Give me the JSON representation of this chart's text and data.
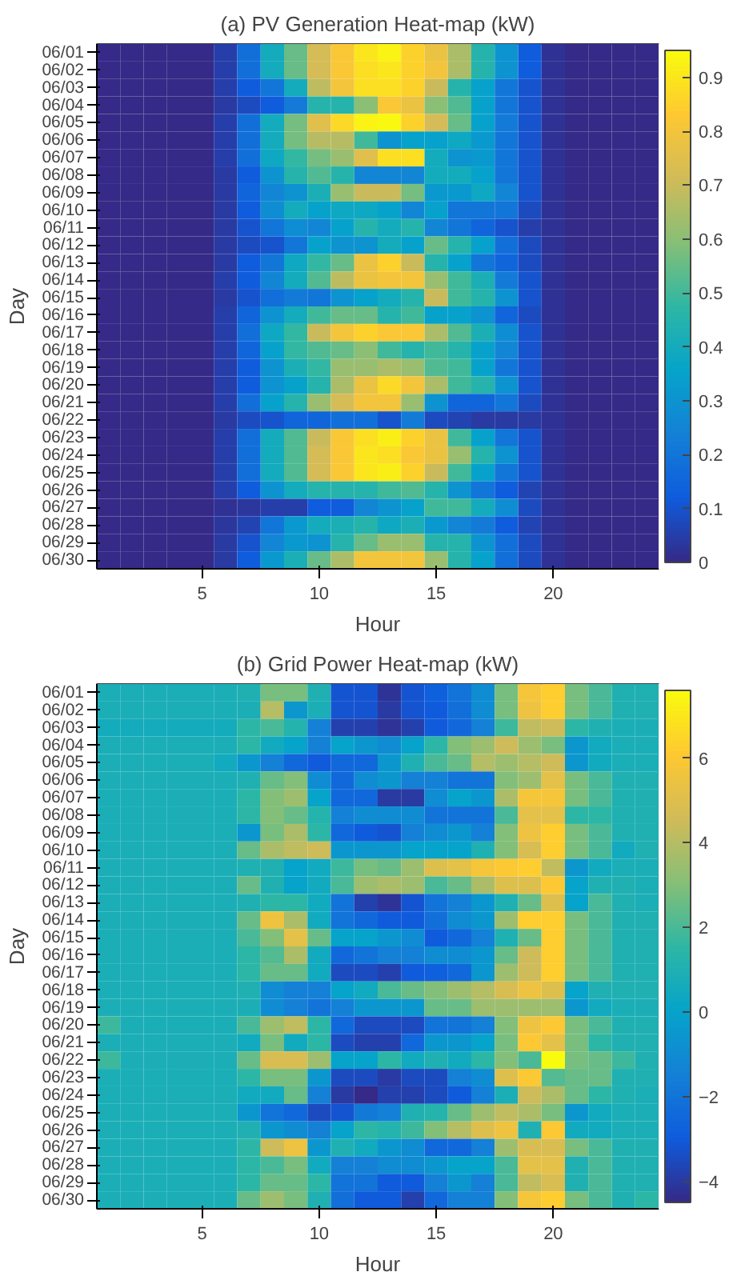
{
  "chart_data": [
    {
      "type": "heatmap",
      "title": "(a) PV Generation Heat-map (kW)",
      "xlabel": "Hour",
      "ylabel": "Day",
      "x": [
        1,
        2,
        3,
        4,
        5,
        6,
        7,
        8,
        9,
        10,
        11,
        12,
        13,
        14,
        15,
        16,
        17,
        18,
        19,
        20,
        21,
        22,
        23,
        24
      ],
      "xlim": [
        0.5,
        24.5
      ],
      "xticks": [
        5,
        10,
        15,
        20
      ],
      "y_categories": [
        "06/01",
        "06/02",
        "06/03",
        "06/04",
        "06/05",
        "06/06",
        "06/07",
        "06/08",
        "06/09",
        "06/10",
        "06/11",
        "06/12",
        "06/13",
        "06/14",
        "06/15",
        "06/16",
        "06/17",
        "06/18",
        "06/19",
        "06/20",
        "06/21",
        "06/22",
        "06/23",
        "06/24",
        "06/25",
        "06/26",
        "06/27",
        "06/28",
        "06/29",
        "06/30"
      ],
      "clim": [
        0,
        0.95
      ],
      "cticks": [
        0,
        0.1,
        0.2,
        0.3,
        0.4,
        0.5,
        0.6,
        0.7,
        0.8,
        0.9
      ],
      "cells": [
        [
          0,
          0,
          0,
          0,
          0,
          0.05,
          0.18,
          0.4,
          0.55,
          0.72,
          0.82,
          0.9,
          0.93,
          0.85,
          0.78,
          0.65,
          0.45,
          0.3,
          0.12,
          0.02,
          0,
          0,
          0,
          0
        ],
        [
          0,
          0,
          0,
          0,
          0,
          0.05,
          0.18,
          0.4,
          0.55,
          0.72,
          0.82,
          0.88,
          0.9,
          0.85,
          0.8,
          0.65,
          0.45,
          0.3,
          0.12,
          0.02,
          0,
          0,
          0,
          0
        ],
        [
          0,
          0,
          0,
          0,
          0,
          0.05,
          0.12,
          0.2,
          0.4,
          0.68,
          0.8,
          0.88,
          0.88,
          0.85,
          0.7,
          0.45,
          0.35,
          0.2,
          0.1,
          0.02,
          0,
          0,
          0,
          0
        ],
        [
          0,
          0,
          0,
          0,
          0,
          0.04,
          0.08,
          0.12,
          0.22,
          0.45,
          0.45,
          0.6,
          0.82,
          0.78,
          0.6,
          0.52,
          0.35,
          0.2,
          0.1,
          0.02,
          0,
          0,
          0,
          0
        ],
        [
          0,
          0,
          0,
          0,
          0,
          0.05,
          0.18,
          0.4,
          0.57,
          0.75,
          0.87,
          0.93,
          0.94,
          0.85,
          0.72,
          0.55,
          0.35,
          0.22,
          0.1,
          0.02,
          0,
          0,
          0,
          0
        ],
        [
          0,
          0,
          0,
          0,
          0,
          0.05,
          0.18,
          0.4,
          0.57,
          0.67,
          0.67,
          0.5,
          0.3,
          0.35,
          0.35,
          0.38,
          0.32,
          0.2,
          0.1,
          0.02,
          0,
          0,
          0,
          0
        ],
        [
          0,
          0,
          0,
          0,
          0,
          0.05,
          0.18,
          0.38,
          0.48,
          0.57,
          0.62,
          0.75,
          0.88,
          0.88,
          0.4,
          0.3,
          0.32,
          0.2,
          0.1,
          0.02,
          0,
          0,
          0,
          0
        ],
        [
          0,
          0,
          0,
          0,
          0,
          0.04,
          0.12,
          0.3,
          0.45,
          0.52,
          0.45,
          0.25,
          0.25,
          0.25,
          0.4,
          0.4,
          0.35,
          0.2,
          0.1,
          0.02,
          0,
          0,
          0,
          0
        ],
        [
          0,
          0,
          0,
          0,
          0,
          0.04,
          0.15,
          0.25,
          0.3,
          0.42,
          0.62,
          0.7,
          0.7,
          0.57,
          0.32,
          0.32,
          0.38,
          0.25,
          0.1,
          0.02,
          0,
          0,
          0,
          0
        ],
        [
          0,
          0,
          0,
          0,
          0,
          0.04,
          0.12,
          0.28,
          0.4,
          0.35,
          0.38,
          0.38,
          0.35,
          0.25,
          0.35,
          0.2,
          0.2,
          0.2,
          0.08,
          0.02,
          0,
          0,
          0,
          0
        ],
        [
          0,
          0,
          0,
          0,
          0,
          0.04,
          0.1,
          0.2,
          0.28,
          0.25,
          0.35,
          0.45,
          0.4,
          0.45,
          0.25,
          0.2,
          0.15,
          0.1,
          0.05,
          0.02,
          0,
          0,
          0,
          0
        ],
        [
          0,
          0,
          0,
          0,
          0,
          0.04,
          0.08,
          0.1,
          0.2,
          0.35,
          0.3,
          0.3,
          0.4,
          0.35,
          0.55,
          0.45,
          0.35,
          0.18,
          0.08,
          0.02,
          0,
          0,
          0,
          0
        ],
        [
          0,
          0,
          0,
          0,
          0,
          0.04,
          0.12,
          0.2,
          0.38,
          0.48,
          0.55,
          0.78,
          0.85,
          0.7,
          0.45,
          0.35,
          0.2,
          0.15,
          0.08,
          0.02,
          0,
          0,
          0,
          0
        ],
        [
          0,
          0,
          0,
          0,
          0,
          0.05,
          0.12,
          0.25,
          0.4,
          0.52,
          0.68,
          0.78,
          0.8,
          0.8,
          0.62,
          0.5,
          0.42,
          0.22,
          0.1,
          0.02,
          0,
          0,
          0,
          0
        ],
        [
          0,
          0,
          0,
          0,
          0,
          0.04,
          0.1,
          0.18,
          0.22,
          0.2,
          0.3,
          0.35,
          0.4,
          0.45,
          0.7,
          0.5,
          0.45,
          0.3,
          0.1,
          0.02,
          0,
          0,
          0,
          0
        ],
        [
          0,
          0,
          0,
          0,
          0,
          0.05,
          0.15,
          0.3,
          0.4,
          0.5,
          0.55,
          0.55,
          0.45,
          0.5,
          0.35,
          0.35,
          0.3,
          0.15,
          0.08,
          0.02,
          0,
          0,
          0,
          0
        ],
        [
          0,
          0,
          0,
          0,
          0,
          0.05,
          0.18,
          0.38,
          0.48,
          0.7,
          0.8,
          0.85,
          0.82,
          0.82,
          0.65,
          0.52,
          0.42,
          0.28,
          0.1,
          0.02,
          0,
          0,
          0,
          0
        ],
        [
          0,
          0,
          0,
          0,
          0,
          0.05,
          0.15,
          0.35,
          0.48,
          0.52,
          0.55,
          0.6,
          0.5,
          0.45,
          0.5,
          0.45,
          0.35,
          0.25,
          0.1,
          0.02,
          0,
          0,
          0,
          0
        ],
        [
          0,
          0,
          0,
          0,
          0,
          0.05,
          0.12,
          0.3,
          0.42,
          0.48,
          0.62,
          0.62,
          0.65,
          0.62,
          0.52,
          0.5,
          0.35,
          0.2,
          0.1,
          0.02,
          0,
          0,
          0,
          0
        ],
        [
          0,
          0,
          0,
          0,
          0,
          0.05,
          0.12,
          0.3,
          0.35,
          0.45,
          0.65,
          0.78,
          0.87,
          0.8,
          0.65,
          0.5,
          0.45,
          0.3,
          0.1,
          0.02,
          0,
          0,
          0,
          0
        ],
        [
          0,
          0,
          0,
          0,
          0,
          0.05,
          0.18,
          0.35,
          0.45,
          0.62,
          0.72,
          0.8,
          0.8,
          0.62,
          0.3,
          0.15,
          0.15,
          0.2,
          0.08,
          0.02,
          0,
          0,
          0,
          0
        ],
        [
          0,
          0,
          0,
          0,
          0,
          0.04,
          0.08,
          0.1,
          0.15,
          0.15,
          0.18,
          0.18,
          0.1,
          0.22,
          0.08,
          0.06,
          0.04,
          0.04,
          0.04,
          0.02,
          0,
          0,
          0,
          0
        ],
        [
          0,
          0,
          0,
          0,
          0,
          0.05,
          0.18,
          0.4,
          0.52,
          0.7,
          0.82,
          0.88,
          0.92,
          0.85,
          0.78,
          0.5,
          0.35,
          0.2,
          0.1,
          0.02,
          0,
          0,
          0,
          0
        ],
        [
          0,
          0,
          0,
          0,
          0,
          0.05,
          0.18,
          0.4,
          0.52,
          0.72,
          0.82,
          0.9,
          0.88,
          0.82,
          0.78,
          0.62,
          0.45,
          0.3,
          0.1,
          0.02,
          0,
          0,
          0,
          0
        ],
        [
          0,
          0,
          0,
          0,
          0,
          0.05,
          0.18,
          0.4,
          0.52,
          0.72,
          0.82,
          0.9,
          0.92,
          0.85,
          0.7,
          0.5,
          0.35,
          0.2,
          0.1,
          0.02,
          0,
          0,
          0,
          0
        ],
        [
          0,
          0,
          0,
          0,
          0,
          0.05,
          0.12,
          0.3,
          0.4,
          0.45,
          0.45,
          0.45,
          0.5,
          0.52,
          0.45,
          0.3,
          0.2,
          0.12,
          0.06,
          0.02,
          0,
          0,
          0,
          0
        ],
        [
          0,
          0,
          0,
          0,
          0,
          0.02,
          0.03,
          0.05,
          0.05,
          0.12,
          0.12,
          0.25,
          0.3,
          0.35,
          0.5,
          0.5,
          0.4,
          0.28,
          0.08,
          0.02,
          0,
          0,
          0,
          0
        ],
        [
          0,
          0,
          0,
          0,
          0,
          0.03,
          0.06,
          0.2,
          0.32,
          0.4,
          0.42,
          0.45,
          0.38,
          0.42,
          0.32,
          0.25,
          0.22,
          0.12,
          0.06,
          0.02,
          0,
          0,
          0,
          0
        ],
        [
          0,
          0,
          0,
          0,
          0,
          0.04,
          0.1,
          0.25,
          0.32,
          0.3,
          0.45,
          0.55,
          0.62,
          0.62,
          0.45,
          0.45,
          0.3,
          0.18,
          0.08,
          0.02,
          0,
          0,
          0,
          0
        ],
        [
          0,
          0,
          0,
          0,
          0,
          0.04,
          0.12,
          0.32,
          0.42,
          0.55,
          0.65,
          0.8,
          0.8,
          0.8,
          0.62,
          0.45,
          0.35,
          0.18,
          0.08,
          0.02,
          0,
          0,
          0,
          0
        ]
      ]
    },
    {
      "type": "heatmap",
      "title": "(b) Grid Power Heat-map (kW)",
      "xlabel": "Hour",
      "ylabel": "Day",
      "x": [
        1,
        2,
        3,
        4,
        5,
        6,
        7,
        8,
        9,
        10,
        11,
        12,
        13,
        14,
        15,
        16,
        17,
        18,
        19,
        20,
        21,
        22,
        23,
        24
      ],
      "xlim": [
        0.5,
        24.5
      ],
      "xticks": [
        5,
        10,
        15,
        20
      ],
      "y_categories": [
        "06/01",
        "06/02",
        "06/03",
        "06/04",
        "06/05",
        "06/06",
        "06/07",
        "06/08",
        "06/09",
        "06/10",
        "06/11",
        "06/12",
        "06/13",
        "06/14",
        "06/15",
        "06/16",
        "06/17",
        "06/18",
        "06/19",
        "06/20",
        "06/21",
        "06/22",
        "06/23",
        "06/24",
        "06/25",
        "06/26",
        "06/27",
        "06/28",
        "06/29",
        "06/30"
      ],
      "clim": [
        -4.5,
        7.6
      ],
      "cticks": [
        -4,
        -2,
        0,
        2,
        4,
        6
      ],
      "cells": [
        [
          0.8,
          0.8,
          0.8,
          0.8,
          0.8,
          0.8,
          1,
          2.8,
          2.8,
          1,
          -3.2,
          -3.2,
          -4.2,
          -3.2,
          -2.8,
          -2,
          -1,
          2.8,
          5.8,
          6.2,
          2.8,
          2,
          1,
          1
        ],
        [
          0.8,
          0.8,
          0.8,
          0.8,
          0.8,
          0.8,
          0.8,
          4,
          -0.5,
          0.8,
          -3.2,
          -3.2,
          -4,
          -3.2,
          -3,
          -2.2,
          -1,
          2.8,
          5.5,
          6.2,
          2.8,
          2,
          1,
          1
        ],
        [
          0.6,
          0.6,
          0.6,
          0.6,
          0.6,
          0.6,
          1.5,
          2,
          1.2,
          -1.5,
          -3.8,
          -3.8,
          -4.2,
          -3.8,
          -3,
          -2.5,
          -1.5,
          1.8,
          4.2,
          4.5,
          1.5,
          1,
          0.8,
          0.8
        ],
        [
          0.8,
          0.8,
          0.8,
          0.8,
          0.8,
          0.8,
          1.5,
          0.5,
          0,
          -1.5,
          0,
          -0.5,
          -1,
          0,
          1.5,
          3,
          3.5,
          4.5,
          3.5,
          2.8,
          -0.5,
          0.5,
          0.8,
          0.8
        ],
        [
          0.8,
          0.8,
          0.8,
          0.8,
          0.8,
          0.5,
          -0.5,
          -1.5,
          -2.5,
          -3,
          -2.5,
          -2.5,
          -0.5,
          1,
          2,
          2.5,
          4,
          3.5,
          4,
          4.5,
          -0.5,
          0.5,
          0.8,
          0.8
        ],
        [
          0.8,
          0.8,
          0.8,
          0.8,
          0.8,
          0.8,
          1,
          2.5,
          3,
          -1,
          -2.5,
          -1,
          -0.5,
          -1.5,
          -1.5,
          -2,
          -2,
          3,
          3.5,
          5.2,
          2.8,
          2,
          1,
          1
        ],
        [
          0.8,
          0.8,
          0.8,
          0.8,
          0.8,
          0.8,
          1.5,
          3,
          3.5,
          0,
          -2.5,
          -2.5,
          -4,
          -4,
          -1,
          0,
          -0.5,
          3.8,
          5.8,
          5.8,
          2.8,
          2,
          1,
          1
        ],
        [
          0.8,
          0.8,
          0.8,
          0.8,
          0.8,
          0.8,
          1.5,
          3,
          2.5,
          1.2,
          -1.5,
          -1,
          -1,
          -1,
          -2,
          -2,
          -2,
          2,
          5.2,
          5.2,
          1.5,
          1.5,
          1,
          1
        ],
        [
          0.8,
          0.8,
          0.8,
          0.8,
          0.8,
          0.8,
          -0.5,
          2.8,
          3.8,
          1.5,
          -2.5,
          -3,
          -3.2,
          -1.5,
          -1,
          -0.5,
          -1.5,
          3,
          5.5,
          6.2,
          2.8,
          2,
          1,
          1
        ],
        [
          0.8,
          0.8,
          0.8,
          0.8,
          0.8,
          0.8,
          2.5,
          3.8,
          4.2,
          4.5,
          -0.5,
          -0.5,
          -0.5,
          0,
          0,
          0,
          1,
          3,
          4.8,
          6.2,
          2.8,
          2,
          0.5,
          1
        ],
        [
          0.8,
          0.8,
          0.8,
          0.8,
          0.8,
          0.8,
          1,
          1,
          0,
          0.5,
          1.8,
          2.8,
          2.5,
          3.5,
          5,
          5.2,
          5.8,
          6,
          6.2,
          4.2,
          -0.5,
          0.5,
          0.8,
          0.8
        ],
        [
          0.8,
          0.8,
          0.8,
          0.8,
          0.8,
          0.8,
          2.5,
          1,
          0,
          0.5,
          2,
          3.5,
          3.8,
          3.5,
          2,
          2.5,
          3.8,
          5,
          5,
          6,
          0,
          1,
          1,
          0.8
        ],
        [
          0.8,
          0.8,
          0.8,
          0.8,
          0.8,
          0.8,
          1,
          1.5,
          1.5,
          0.5,
          -2,
          -3.8,
          -4.2,
          -3.2,
          -2,
          -1.5,
          -0.5,
          1,
          2.5,
          5,
          0,
          2,
          1,
          0.8
        ],
        [
          0.8,
          0.8,
          0.8,
          0.8,
          0.8,
          0.8,
          2.5,
          5.5,
          3.8,
          0.5,
          -2,
          -2.5,
          -3,
          -3,
          -2.2,
          -1,
          -0.5,
          3.5,
          6.2,
          6.2,
          2.8,
          2,
          1,
          1
        ],
        [
          0.8,
          0.8,
          0.8,
          0.8,
          0.8,
          0.8,
          2,
          3,
          5.2,
          2.5,
          0,
          0,
          -0.5,
          -1,
          -3,
          -2.5,
          -1.5,
          1,
          2.5,
          6.2,
          2.8,
          2,
          1,
          1
        ],
        [
          0.8,
          0.8,
          0.8,
          0.8,
          0.8,
          0.8,
          1.5,
          2.2,
          3.8,
          0.5,
          -2.5,
          -2,
          -1.5,
          -1.5,
          -1,
          -1,
          -0.5,
          2.5,
          4.5,
          6.2,
          2.8,
          2,
          1,
          1
        ],
        [
          0.8,
          0.8,
          0.8,
          0.8,
          0.8,
          0.8,
          1.5,
          2.5,
          2.5,
          0.5,
          -3.5,
          -3.5,
          -3.8,
          -3,
          -2.8,
          -2.5,
          -0.5,
          3.5,
          4.5,
          6.2,
          2.8,
          2,
          1,
          1
        ],
        [
          0.8,
          0.8,
          0.8,
          0.8,
          0.8,
          0.8,
          1,
          -1,
          -1.5,
          -1.5,
          0,
          0.5,
          2,
          2.5,
          3,
          3.5,
          4,
          4.8,
          5.5,
          5,
          0,
          1,
          1,
          1
        ],
        [
          0.8,
          0.8,
          0.8,
          0.8,
          0.8,
          0.8,
          0.8,
          -1,
          -1.5,
          -2,
          -1.5,
          -0.5,
          -0.5,
          -0.5,
          2.5,
          2.5,
          3.5,
          3.5,
          3.5,
          3.5,
          -0.5,
          0.5,
          0.8,
          0.8
        ],
        [
          1.8,
          0.8,
          0.8,
          0.8,
          0.8,
          0.8,
          2,
          3.5,
          4.2,
          1.5,
          -2.5,
          -3.5,
          -3.5,
          -3.5,
          -2,
          -2,
          -1.5,
          3,
          5.5,
          6,
          2.8,
          2,
          1,
          1
        ],
        [
          0.8,
          0.8,
          0.8,
          0.8,
          0.8,
          0.8,
          0.5,
          2.8,
          0.5,
          1.5,
          -3.5,
          -3.8,
          -3.8,
          -2.5,
          -0.5,
          -0.5,
          0,
          2.8,
          6,
          5.2,
          2.8,
          1.5,
          1,
          1
        ],
        [
          1.8,
          0.8,
          0.8,
          0.8,
          0.8,
          0.8,
          2.5,
          4.8,
          4.8,
          3.5,
          0,
          0,
          1.5,
          0.5,
          1,
          0.5,
          1.5,
          3,
          2,
          7.6,
          2.8,
          2.5,
          1.8,
          1
        ],
        [
          0.8,
          0.8,
          0.8,
          0.8,
          0.8,
          0.8,
          1.5,
          2.8,
          2.8,
          -0.5,
          -3.5,
          -3.5,
          -4,
          -3.5,
          -3.5,
          -1.5,
          -1,
          5,
          6,
          2.2,
          2.5,
          2.5,
          1,
          1
        ],
        [
          0.8,
          0.8,
          0.8,
          0.8,
          0.8,
          0.8,
          0.5,
          0.5,
          2.5,
          -1.5,
          -4,
          -4.5,
          -3.8,
          -3.8,
          -3.5,
          -3,
          -1.5,
          0.8,
          4.5,
          3.8,
          2.5,
          1.5,
          1,
          0.8
        ],
        [
          0.8,
          0.8,
          0.8,
          0.8,
          0.8,
          0.8,
          -0.5,
          -2,
          -2.5,
          -3.5,
          -3.2,
          -1.8,
          -1.5,
          1,
          1.2,
          2.5,
          3.5,
          4.2,
          3.8,
          2.8,
          -0.5,
          0.5,
          0.8,
          0.8
        ],
        [
          0.8,
          0.8,
          0.8,
          0.8,
          0.8,
          0.8,
          1,
          -0.5,
          -1,
          -1.5,
          0,
          1.5,
          1.2,
          1.8,
          3,
          4,
          5,
          5.5,
          1,
          6,
          0.5,
          0.5,
          0.8,
          0.8
        ],
        [
          0.8,
          0.8,
          0.8,
          0.8,
          0.8,
          0.8,
          1.5,
          4.5,
          5.5,
          -0.5,
          1,
          0.5,
          -0.5,
          -1,
          -2.5,
          -2.5,
          -1.5,
          3.5,
          4.8,
          4.8,
          2.8,
          2,
          1,
          1
        ],
        [
          0.8,
          0.8,
          0.8,
          0.8,
          0.8,
          0.8,
          1.5,
          2,
          2.8,
          0.5,
          -1.5,
          -1.5,
          -1,
          -1,
          -0.5,
          0,
          0,
          2,
          5.2,
          5.2,
          1,
          2,
          1,
          1
        ],
        [
          0.8,
          0.8,
          0.8,
          0.8,
          0.8,
          0.8,
          1.5,
          2.5,
          2.5,
          1.5,
          -2,
          -2,
          -3,
          -3,
          -1.5,
          -0.5,
          -1.5,
          2,
          4.2,
          4.8,
          1,
          2,
          1,
          1
        ],
        [
          0.8,
          0.8,
          0.8,
          0.8,
          0.8,
          0.8,
          2.5,
          3.5,
          2.8,
          1,
          -2.2,
          -3,
          -3,
          -3.8,
          -2.5,
          -1.5,
          -1.5,
          3,
          5.8,
          6.2,
          2.8,
          2,
          1,
          1.5
        ]
      ]
    }
  ]
}
